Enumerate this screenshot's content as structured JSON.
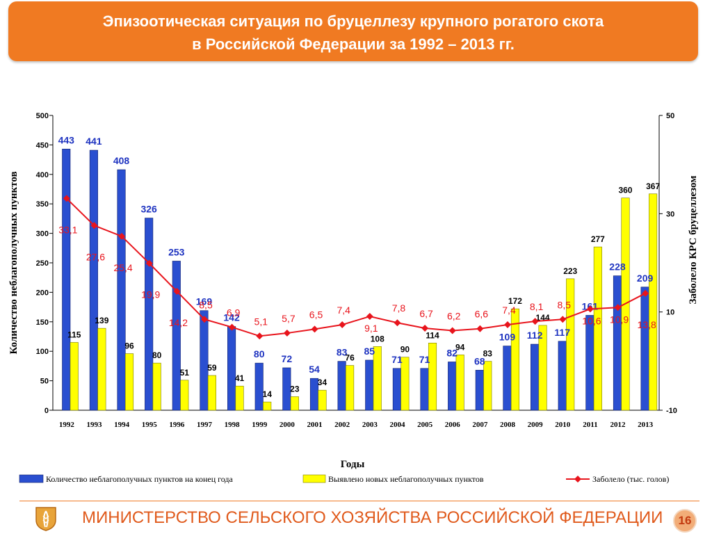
{
  "slide": {
    "title_line1": "Эпизоотическая ситуация по  бруцеллезу крупного рогатого скота",
    "title_line2": "в Российской Федерации за 1992 – 2013 гг.",
    "ministry": "МИНИСТЕРСТВО СЕЛЬСКОГО ХОЗЯЙСТВА РОССИЙСКОЙ ФЕДЕРАЦИИ",
    "page_number": "16",
    "accent_color": "#f07a22"
  },
  "chart_data": {
    "type": "bar",
    "xlabel": "Годы",
    "ylabel_left": "Количество неблагополучных пунктов",
    "ylabel_right": "Заболело КРС бруцеллезом",
    "ylim_left": [
      0,
      500
    ],
    "yticks_left": [
      0,
      50,
      100,
      150,
      200,
      250,
      300,
      350,
      400,
      450,
      500
    ],
    "ylim_right": [
      -10,
      50
    ],
    "yticks_right": [
      -10,
      10,
      30,
      50
    ],
    "categories": [
      "1992",
      "1993",
      "1994",
      "1995",
      "1996",
      "1997",
      "1998",
      "1999",
      "2000",
      "2001",
      "2002",
      "2003",
      "2004",
      "2005",
      "2006",
      "2007",
      "2008",
      "2009",
      "2010",
      "2011",
      "2012",
      "2013"
    ],
    "series": [
      {
        "name": "Количество неблагополучных пунктов на конец года",
        "type": "bar",
        "axis": "left",
        "color": "#2a4fd0",
        "values": [
          443,
          441,
          408,
          326,
          253,
          169,
          142,
          80,
          72,
          54,
          83,
          85,
          71,
          71,
          82,
          68,
          109,
          112,
          117,
          161,
          228,
          209
        ],
        "labels": [
          "443",
          "441",
          "408",
          "326",
          "253",
          "169",
          "142",
          "80",
          "72",
          "54",
          "83",
          "85",
          "71",
          "71",
          "82",
          "68",
          "109",
          "112",
          "117",
          "161",
          "228",
          "209"
        ]
      },
      {
        "name": "Выявлено новых неблагополучных пунктов",
        "type": "bar",
        "axis": "left",
        "color": "#ffff00",
        "values": [
          115,
          139,
          96,
          80,
          51,
          59,
          41,
          14,
          23,
          34,
          76,
          108,
          90,
          114,
          94,
          83,
          172,
          144,
          223,
          277,
          360,
          367
        ],
        "labels": [
          "115",
          "139",
          "96",
          "80",
          "51",
          "59",
          "41",
          "14",
          "23",
          "34",
          "76",
          "108",
          "90",
          "114",
          "94",
          "83",
          "172",
          "144",
          "223",
          "277",
          "360",
          "367"
        ]
      },
      {
        "name": "Заболело (тыс. голов)",
        "type": "line",
        "axis": "right",
        "color": "#e8141c",
        "values": [
          33.1,
          27.6,
          25.4,
          19.9,
          14.2,
          8.5,
          6.9,
          5.1,
          5.7,
          6.5,
          7.4,
          9.1,
          7.8,
          6.7,
          6.2,
          6.6,
          7.4,
          8.1,
          8.5,
          10.6,
          10.9,
          13.8
        ],
        "labels": [
          "33,1",
          "27,6",
          "25,4",
          "19,9",
          "14,2",
          "8,5",
          "6,9",
          "5,1",
          "5,7",
          "6,5",
          "7,4",
          "9,1",
          "7,8",
          "6,7",
          "6,2",
          "6,6",
          "7,4",
          "8,1",
          "8,5",
          "10,6",
          "10,9",
          "13,8"
        ]
      }
    ],
    "legend_position": "bottom",
    "grid": false
  }
}
